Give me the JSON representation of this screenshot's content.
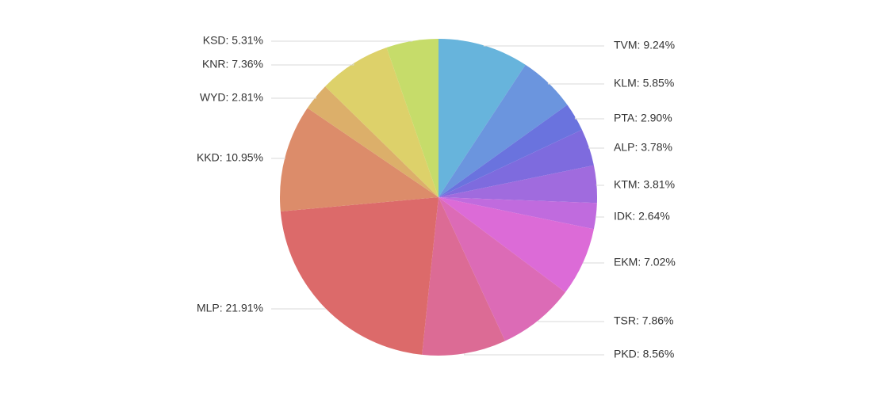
{
  "chart_data": {
    "type": "pie",
    "start_angle_deg": 0,
    "direction": "clockwise",
    "slices": [
      {
        "label": "TVM",
        "value": 9.24,
        "display": "TVM: 9.24%",
        "color": "#67b4dc",
        "side": "right"
      },
      {
        "label": "KLM",
        "value": 5.85,
        "display": "KLM: 5.85%",
        "color": "#6b95de",
        "side": "right"
      },
      {
        "label": "PTA",
        "value": 2.9,
        "display": "PTA: 2.90%",
        "color": "#6a73de",
        "side": "right"
      },
      {
        "label": "ALP",
        "value": 3.78,
        "display": "ALP: 3.78%",
        "color": "#7e6bde",
        "side": "right"
      },
      {
        "label": "KTM",
        "value": 3.81,
        "display": "KTM: 3.81%",
        "color": "#a06bde",
        "side": "right"
      },
      {
        "label": "IDK",
        "value": 2.64,
        "display": "IDK: 2.64%",
        "color": "#c06bde",
        "side": "right"
      },
      {
        "label": "EKM",
        "value": 7.02,
        "display": "EKM: 7.02%",
        "color": "#dc6bd7",
        "side": "right"
      },
      {
        "label": "TSR",
        "value": 7.86,
        "display": "TSR: 7.86%",
        "color": "#dc6bb6",
        "side": "right"
      },
      {
        "label": "PKD",
        "value": 8.56,
        "display": "PKD: 8.56%",
        "color": "#dc6b95",
        "side": "right"
      },
      {
        "label": "MLP",
        "value": 21.91,
        "display": "MLP: 21.91%",
        "color": "#dc6a6a",
        "side": "left"
      },
      {
        "label": "KKD",
        "value": 10.95,
        "display": "KKD: 10.95%",
        "color": "#dc8c6a",
        "side": "left"
      },
      {
        "label": "WYD",
        "value": 2.81,
        "display": "WYD: 2.81%",
        "color": "#dcaf6a",
        "side": "left"
      },
      {
        "label": "KNR",
        "value": 7.36,
        "display": "KNR: 7.36%",
        "color": "#ddd16a",
        "side": "left"
      },
      {
        "label": "KSD",
        "value": 5.31,
        "display": "KSD: 5.31%",
        "color": "#c6dc6a",
        "side": "left"
      }
    ]
  }
}
